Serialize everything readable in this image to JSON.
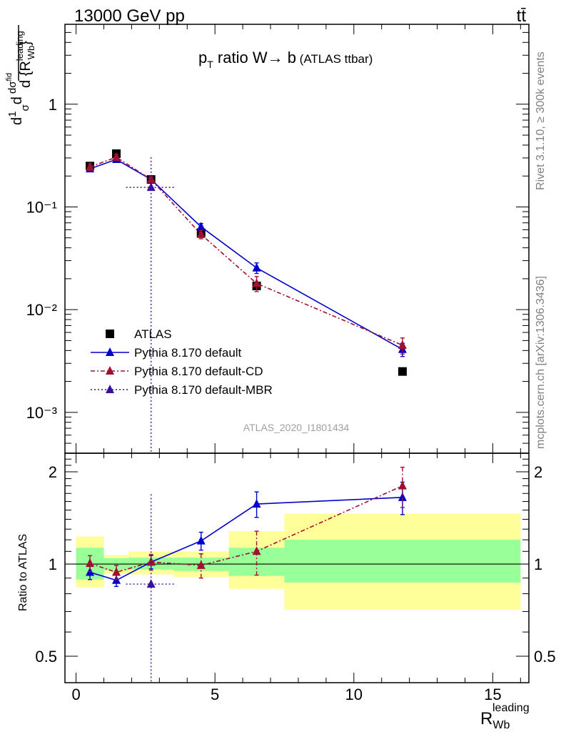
{
  "header": {
    "beam": "13000 GeV pp",
    "process": "tt̄"
  },
  "side": {
    "rivet": "Rivet 3.1.10, ≥ 300k events",
    "mcplots": "mcplots.cern.ch [arXiv:1306.3436]"
  },
  "plot_title": {
    "main": "p",
    "sub": "T",
    "rest": " ratio W→ b",
    "small": " (ATLAS ttbar)"
  },
  "analysis_id": "ATLAS_2020_I1801434",
  "ylabel_top": "1/σ dσ^fid / d{R_Wb^leading}",
  "xlabel_main": "R",
  "xlabel_sub": "Wb",
  "xlabel_sup": "leading",
  "ylabel_ratio": "Ratio to ATLAS",
  "colors": {
    "atlas": "#000000",
    "default": "#0000cc",
    "cd": "#a0102f",
    "mbr": "#3a0fa0",
    "band_inner": "#99ff99",
    "band_outer": "#ffff99"
  },
  "legend": [
    {
      "label": "ATLAS",
      "style": "data"
    },
    {
      "label": "Pythia 8.170 default",
      "style": "default"
    },
    {
      "label": "Pythia 8.170 default-CD",
      "style": "cd"
    },
    {
      "label": "Pythia 8.170 default-MBR",
      "style": "mbr"
    }
  ],
  "chart_data": [
    {
      "type": "scatter",
      "panel": "main",
      "xlim": [
        -0.4,
        16.3
      ],
      "ylim": [
        0.0004,
        6
      ],
      "log_y": true,
      "y_tick_labels": [
        "10⁻³",
        "10⁻²",
        "10⁻¹",
        "1"
      ],
      "series": [
        {
          "name": "ATLAS",
          "style": "data",
          "x": [
            0.5,
            1.45,
            2.7,
            4.5,
            6.5,
            11.75
          ],
          "y": [
            0.25,
            0.33,
            0.185,
            0.056,
            0.017,
            0.0025
          ]
        },
        {
          "name": "Pythia 8.170 default",
          "style": "default",
          "x": [
            0.5,
            1.45,
            2.7,
            4.5,
            6.5,
            11.75
          ],
          "y": [
            0.235,
            0.29,
            0.185,
            0.064,
            0.0255,
            0.0041
          ],
          "err": [
            0.015,
            0.015,
            0.01,
            0.005,
            0.003,
            0.0006
          ]
        },
        {
          "name": "Pythia 8.170 default-CD",
          "style": "cd",
          "x": [
            0.5,
            1.45,
            2.7,
            4.5,
            6.5,
            11.75
          ],
          "y": [
            0.245,
            0.305,
            0.185,
            0.054,
            0.018,
            0.0045
          ],
          "err": [
            0.018,
            0.02,
            0.012,
            0.005,
            0.003,
            0.0008
          ]
        },
        {
          "name": "Pythia 8.170 default-MBR",
          "style": "mbr",
          "x": [
            2.7
          ],
          "xerr": [
            0.9
          ],
          "y": [
            0.155
          ],
          "err_lo": [
            0.155
          ],
          "err_hi": [
            0.15
          ]
        }
      ]
    },
    {
      "type": "scatter",
      "panel": "ratio",
      "xlabel": "R_Wb^leading",
      "ylabel": "Ratio to ATLAS",
      "xlim": [
        -0.4,
        16.3
      ],
      "ylim": [
        0.41,
        2.3
      ],
      "log_y": true,
      "x_ticks": [
        0,
        5,
        10,
        15
      ],
      "y_ticks": [
        0.5,
        1,
        2
      ],
      "bands": [
        {
          "x0": 0,
          "x1": 1,
          "inner": [
            0.89,
            1.13
          ],
          "outer": [
            0.84,
            1.23
          ]
        },
        {
          "x0": 1,
          "x1": 1.9,
          "inner": [
            0.955,
            1.045
          ],
          "outer": [
            0.93,
            1.07
          ]
        },
        {
          "x0": 1.9,
          "x1": 3.5,
          "inner": [
            0.96,
            1.05
          ],
          "outer": [
            0.925,
            1.1
          ]
        },
        {
          "x0": 3.5,
          "x1": 5.5,
          "inner": [
            0.95,
            1.05
          ],
          "outer": [
            0.905,
            1.1
          ]
        },
        {
          "x0": 5.5,
          "x1": 7.5,
          "inner": [
            0.915,
            1.13
          ],
          "outer": [
            0.83,
            1.28
          ]
        },
        {
          "x0": 7.5,
          "x1": 16,
          "inner": [
            0.87,
            1.2
          ],
          "outer": [
            0.71,
            1.46
          ]
        }
      ],
      "series": [
        {
          "name": "Pythia 8.170 default",
          "style": "default",
          "x": [
            0.5,
            1.45,
            2.7,
            4.5,
            6.5,
            11.75
          ],
          "y": [
            0.94,
            0.885,
            1.015,
            1.19,
            1.57,
            1.65
          ],
          "err": [
            0.05,
            0.04,
            0.05,
            0.08,
            0.15,
            0.2
          ]
        },
        {
          "name": "Pythia 8.170 default-CD",
          "style": "cd",
          "x": [
            0.5,
            1.45,
            2.7,
            4.5,
            6.5,
            11.75
          ],
          "y": [
            1.005,
            0.94,
            1.015,
            0.99,
            1.1,
            1.8
          ],
          "err": [
            0.06,
            0.05,
            0.06,
            0.09,
            0.18,
            0.27
          ]
        },
        {
          "name": "Pythia 8.170 default-MBR",
          "style": "mbr",
          "x": [
            2.7
          ],
          "xerr": [
            0.9
          ],
          "y": [
            0.86
          ],
          "err_lo": [
            0.5
          ],
          "err_hi": [
            0.83
          ]
        }
      ]
    }
  ]
}
